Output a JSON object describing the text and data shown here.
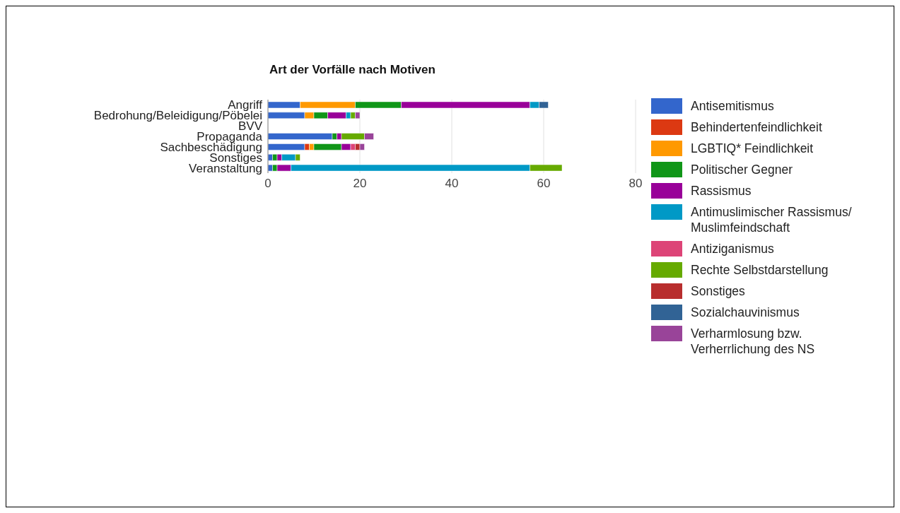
{
  "chart_data": {
    "type": "bar",
    "orientation": "horizontal",
    "stacked": true,
    "title": "Art der Vorfälle nach Motiven",
    "categories": [
      "Angriff",
      "Bedrohung/Beleidigung/Pöbelei",
      "BVV",
      "Propaganda",
      "Sachbeschädigung",
      "Sonstiges",
      "Veranstaltung"
    ],
    "series": [
      {
        "name": "Antisemitismus",
        "color": "#3366cc",
        "values": [
          7,
          8,
          0,
          14,
          8,
          1,
          1
        ]
      },
      {
        "name": "Behindertenfeindlichkeit",
        "color": "#dc3912",
        "values": [
          0,
          0,
          0,
          0,
          1,
          0,
          0
        ]
      },
      {
        "name": "LGBTIQ* Feindlichkeit",
        "color": "#ff9900",
        "values": [
          12,
          2,
          0,
          0,
          1,
          0,
          0
        ]
      },
      {
        "name": "Politischer Gegner",
        "color": "#109618",
        "values": [
          10,
          3,
          0,
          1,
          6,
          1,
          1
        ]
      },
      {
        "name": "Rassismus",
        "color": "#990099",
        "values": [
          28,
          4,
          0,
          1,
          2,
          1,
          3
        ]
      },
      {
        "name": "Antimuslimischer Rassismus/ Muslimfeindschaft",
        "color": "#0099c6",
        "values": [
          2,
          1,
          0,
          0,
          0,
          3,
          52
        ]
      },
      {
        "name": "Antiziganismus",
        "color": "#dd4477",
        "values": [
          0,
          0,
          0,
          0,
          1,
          0,
          0
        ]
      },
      {
        "name": "Rechte Selbstdarstellung",
        "color": "#66aa00",
        "values": [
          0,
          1,
          0,
          5,
          0,
          1,
          7
        ]
      },
      {
        "name": "Sonstiges",
        "color": "#b82e2e",
        "values": [
          0,
          0,
          0,
          0,
          1,
          0,
          0
        ]
      },
      {
        "name": "Sozialchauvinismus",
        "color": "#316395",
        "values": [
          2,
          0,
          0,
          0,
          0,
          0,
          0
        ]
      },
      {
        "name": "Verharmlosung bzw. Verherrlichung des NS",
        "color": "#994499",
        "values": [
          0,
          1,
          0,
          2,
          1,
          0,
          0
        ]
      }
    ],
    "xlim": [
      0,
      80
    ],
    "xticks": [
      0,
      20,
      40,
      60,
      80
    ],
    "grid": "x",
    "legend": "right"
  }
}
